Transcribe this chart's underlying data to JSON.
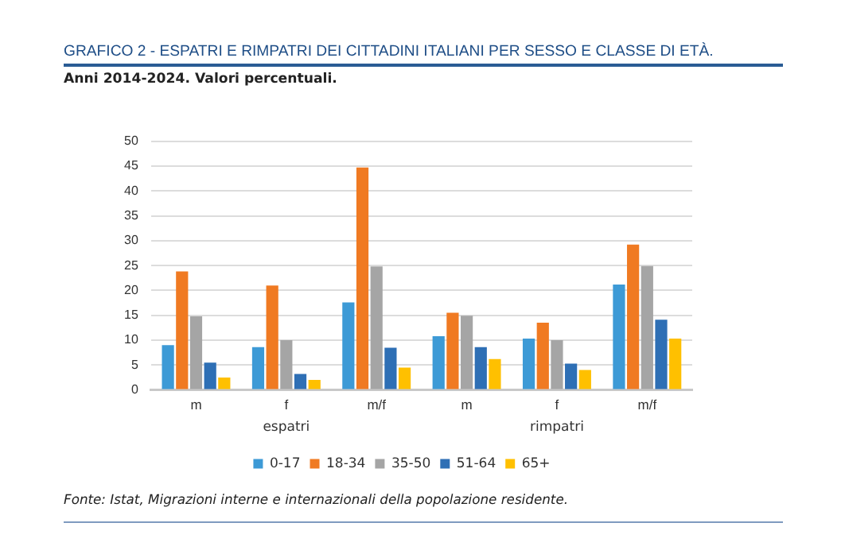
{
  "chart_data": {
    "type": "bar",
    "title": "GRAFICO 2 - ESPATRI E RIMPATRI DEI CITTADINI ITALIANI PER SESSO E CLASSE DI ETÀ.",
    "subtitle": "Anni 2014-2024. Valori percentuali.",
    "categories": [
      "m",
      "f",
      "m/f",
      "m",
      "f",
      "m/f"
    ],
    "series": [
      {
        "name": "0-17",
        "color": "#3d9ad6",
        "values": [
          9,
          8.6,
          17.6,
          10.8,
          10.3,
          21.2
        ]
      },
      {
        "name": "18-34",
        "color": "#f07a22",
        "values": [
          23.8,
          21,
          44.7,
          15.5,
          13.5,
          29.2
        ]
      },
      {
        "name": "35-50",
        "color": "#a5a5a5",
        "values": [
          14.8,
          10,
          24.8,
          14.9,
          10,
          24.9
        ]
      },
      {
        "name": "51-64",
        "color": "#2e6fb5",
        "values": [
          5.5,
          3.2,
          8.5,
          8.6,
          5.3,
          14.1
        ]
      },
      {
        "name": "65+",
        "color": "#ffc000",
        "values": [
          2.5,
          2,
          4.5,
          6.2,
          4,
          10.3
        ]
      }
    ],
    "ylim": [
      0,
      50
    ],
    "yticks": [
      0,
      5,
      10,
      15,
      20,
      25,
      30,
      35,
      40,
      45,
      50
    ],
    "grid": "y",
    "legend": "bottom",
    "annotations": [
      "espatri",
      "rimpatri",
      "Fonte: Istat, Migrazioni interne e internazionali della popolazione residente."
    ]
  }
}
